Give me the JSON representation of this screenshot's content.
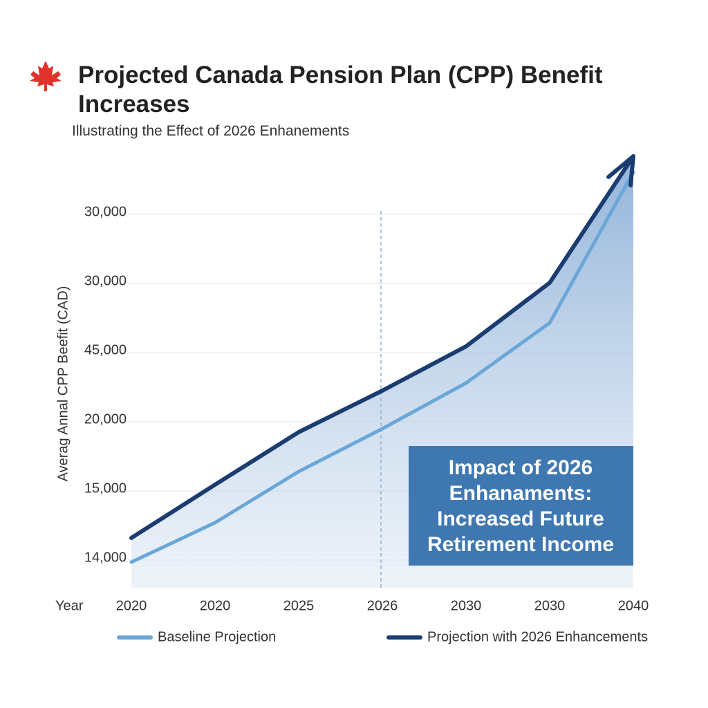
{
  "chart_data": {
    "type": "line",
    "title": "Projected Canada Pension Plan (CPP) Benefit Increases",
    "subtitle": "Illustrating the Effect of 2026 Enhanements",
    "y_label": "Averag Annal CPP Beefit (CAD)",
    "x_label": "Year",
    "categories": [
      "2020",
      "2020",
      "2025",
      "2026",
      "2030",
      "2030",
      "2040"
    ],
    "series": [
      {
        "name": "Baseline Projection",
        "color": "#6aa7d8",
        "values": [
          -0.03,
          0.54,
          1.28,
          1.9,
          2.56,
          3.43,
          5.61
        ]
      },
      {
        "name": "Projection with 2026 Enhancements",
        "color": "#1b3c70",
        "values": [
          0.32,
          1.09,
          1.85,
          2.45,
          3.09,
          4.01,
          5.84
        ]
      }
    ],
    "ylim": [
      -0.4,
      5.9
    ],
    "yticks": [
      {
        "value": 0,
        "label": "14,000"
      },
      {
        "value": 1,
        "label": "15,000"
      },
      {
        "value": 2,
        "label": "20,000"
      },
      {
        "value": 3,
        "label": "45,000"
      },
      {
        "value": 4,
        "label": "30,000"
      },
      {
        "value": 5,
        "label": "30,000"
      }
    ],
    "grid": true,
    "annotation": [
      "Impact of 2026",
      "Enhanaments:",
      "Increased Future",
      "Retirement Income"
    ]
  }
}
